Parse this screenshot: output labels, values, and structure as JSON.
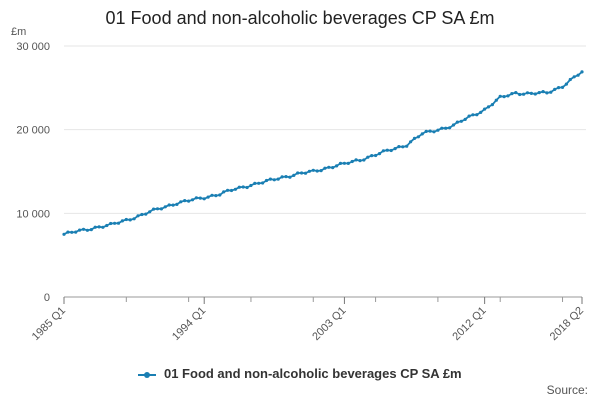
{
  "chart_data": {
    "type": "line",
    "title": "01 Food and non-alcoholic beverages CP SA £m",
    "ylabel": "£m",
    "xlabel": "",
    "ylim": [
      0,
      30000
    ],
    "yticks": [
      0,
      10000,
      20000,
      30000
    ],
    "ytick_labels": [
      "0",
      "10 000",
      "20 000",
      "30 000"
    ],
    "xticks": [
      "1985 Q1",
      "1994 Q1",
      "2003 Q1",
      "2012 Q1",
      "2018 Q2"
    ],
    "xrange": [
      "1985 Q1",
      "2018 Q2"
    ],
    "grid": true,
    "legend": "bottom",
    "series": [
      {
        "name": "01 Food and non-alcoholic beverages CP SA £m",
        "color": "#1a7fb3",
        "annual_anchor_values": [
          {
            "x": "1985 Q1",
            "y": 7500
          },
          {
            "x": "1986 Q1",
            "y": 7900
          },
          {
            "x": "1987 Q1",
            "y": 8300
          },
          {
            "x": "1988 Q1",
            "y": 8600
          },
          {
            "x": "1989 Q1",
            "y": 9200
          },
          {
            "x": "1990 Q1",
            "y": 9800
          },
          {
            "x": "1991 Q1",
            "y": 10500
          },
          {
            "x": "1992 Q1",
            "y": 11100
          },
          {
            "x": "1993 Q1",
            "y": 11500
          },
          {
            "x": "1994 Q1",
            "y": 11900
          },
          {
            "x": "1995 Q1",
            "y": 12300
          },
          {
            "x": "1996 Q1",
            "y": 12900
          },
          {
            "x": "1997 Q1",
            "y": 13400
          },
          {
            "x": "1998 Q1",
            "y": 13800
          },
          {
            "x": "1999 Q1",
            "y": 14300
          },
          {
            "x": "2000 Q1",
            "y": 14700
          },
          {
            "x": "2001 Q1",
            "y": 15000
          },
          {
            "x": "2002 Q1",
            "y": 15500
          },
          {
            "x": "2003 Q1",
            "y": 15900
          },
          {
            "x": "2004 Q1",
            "y": 16400
          },
          {
            "x": "2005 Q1",
            "y": 17000
          },
          {
            "x": "2006 Q1",
            "y": 17600
          },
          {
            "x": "2007 Q1",
            "y": 18200
          },
          {
            "x": "2008 Q1",
            "y": 19500
          },
          {
            "x": "2009 Q1",
            "y": 20000
          },
          {
            "x": "2010 Q1",
            "y": 20500
          },
          {
            "x": "2011 Q1",
            "y": 21500
          },
          {
            "x": "2012 Q1",
            "y": 22400
          },
          {
            "x": "2013 Q1",
            "y": 23800
          },
          {
            "x": "2014 Q1",
            "y": 24400
          },
          {
            "x": "2015 Q1",
            "y": 24300
          },
          {
            "x": "2016 Q1",
            "y": 24400
          },
          {
            "x": "2017 Q1",
            "y": 25200
          },
          {
            "x": "2018 Q2",
            "y": 26900
          }
        ]
      }
    ]
  },
  "legend": {
    "label": "01 Food and non-alcoholic beverages CP SA £m"
  },
  "source": {
    "label": "Source:"
  }
}
